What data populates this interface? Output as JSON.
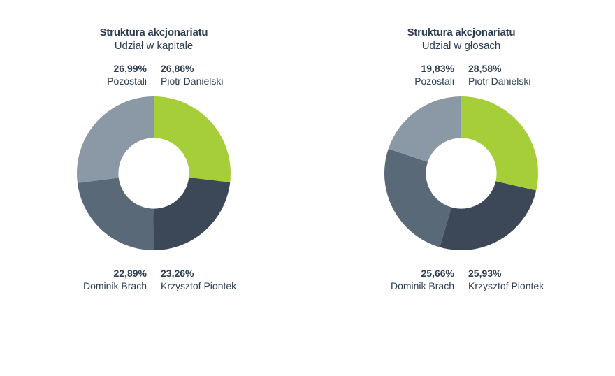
{
  "charts": [
    {
      "title": "Struktura akcjonariatu",
      "subtitle": "Udział w kapitale",
      "type": "donut",
      "inner_radius_ratio": 0.46,
      "background_color": "#ffffff",
      "text_color": "#2e3e52",
      "title_fontsize": 15,
      "subtitle_fontsize": 15,
      "label_fontsize": 14,
      "slices": [
        {
          "name": "Piotr Danielski",
          "value": 26.86,
          "pct_label": "26,86%",
          "color": "#a6ce39",
          "label_pos": "tr"
        },
        {
          "name": "Krzysztof Piontek",
          "value": 23.26,
          "pct_label": "23,26%",
          "color": "#3c4858",
          "label_pos": "br"
        },
        {
          "name": "Dominik Brach",
          "value": 22.89,
          "pct_label": "22,89%",
          "color": "#5a6978",
          "label_pos": "bl"
        },
        {
          "name": "Pozostali",
          "value": 26.99,
          "pct_label": "26,99%",
          "color": "#8b98a5",
          "label_pos": "tl"
        }
      ]
    },
    {
      "title": "Struktura akcjonariatu",
      "subtitle": "Udział w głosach",
      "type": "donut",
      "inner_radius_ratio": 0.46,
      "background_color": "#ffffff",
      "text_color": "#2e3e52",
      "title_fontsize": 15,
      "subtitle_fontsize": 15,
      "label_fontsize": 14,
      "slices": [
        {
          "name": "Piotr Danielski",
          "value": 28.58,
          "pct_label": "28,58%",
          "color": "#a6ce39",
          "label_pos": "tr"
        },
        {
          "name": "Krzysztof Piontek",
          "value": 25.93,
          "pct_label": "25,93%",
          "color": "#3c4858",
          "label_pos": "br"
        },
        {
          "name": "Dominik Brach",
          "value": 25.66,
          "pct_label": "25,66%",
          "color": "#5a6978",
          "label_pos": "bl"
        },
        {
          "name": "Pozostali",
          "value": 19.83,
          "pct_label": "19,83%",
          "color": "#8b98a5",
          "label_pos": "tl"
        }
      ]
    }
  ]
}
